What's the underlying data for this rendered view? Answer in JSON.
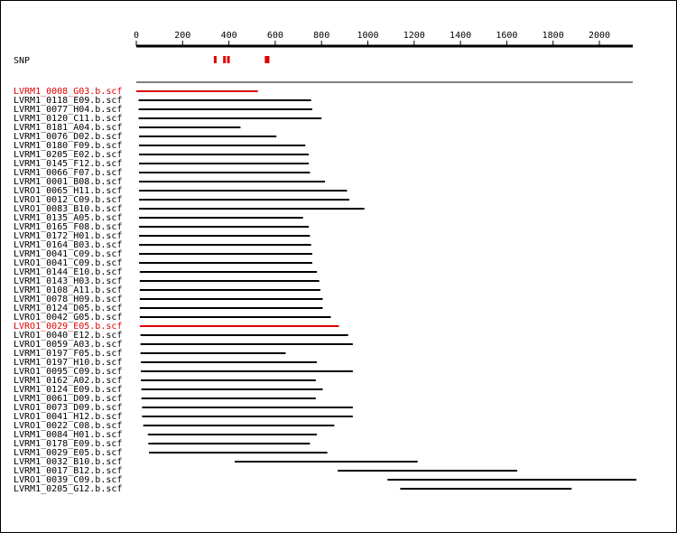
{
  "snp_label": "SNP",
  "scale": {
    "min": 0,
    "max": 2150,
    "ticks": [
      0,
      200,
      400,
      600,
      800,
      1000,
      1200,
      1400,
      1600,
      1800,
      2000
    ]
  },
  "colors": {
    "normal": "#000000",
    "highlight": "#e00000",
    "snp": "#e00000"
  },
  "snps": [
    {
      "start": 335,
      "end": 345
    },
    {
      "start": 375,
      "end": 385
    },
    {
      "start": 392,
      "end": 402
    },
    {
      "start": 555,
      "end": 575
    }
  ],
  "reads": [
    {
      "name": "LVRM1_0008_G03.b.scf",
      "start": 0,
      "end": 525,
      "highlight": true
    },
    {
      "name": "LVRM1_0118_E09.b.scf",
      "start": 10,
      "end": 755,
      "highlight": false
    },
    {
      "name": "LVRM1_0077_H04.b.scf",
      "start": 10,
      "end": 760,
      "highlight": false
    },
    {
      "name": "LVRM1_0120_C11.b.scf",
      "start": 10,
      "end": 800,
      "highlight": false
    },
    {
      "name": "LVRM1_0181_A04.b.scf",
      "start": 12,
      "end": 450,
      "highlight": false
    },
    {
      "name": "LVRM1_0076_D02.b.scf",
      "start": 12,
      "end": 605,
      "highlight": false
    },
    {
      "name": "LVRM1_0180_F09.b.scf",
      "start": 12,
      "end": 730,
      "highlight": false
    },
    {
      "name": "LVRM1_0205_E02.b.scf",
      "start": 12,
      "end": 745,
      "highlight": false
    },
    {
      "name": "LVRM1_0145_F12.b.scf",
      "start": 12,
      "end": 745,
      "highlight": false
    },
    {
      "name": "LVRM1_0066_F07.b.scf",
      "start": 12,
      "end": 750,
      "highlight": false
    },
    {
      "name": "LVRM1_0001_B08.b.scf",
      "start": 12,
      "end": 815,
      "highlight": false
    },
    {
      "name": "LVRO1_0065_H11.b.scf",
      "start": 12,
      "end": 910,
      "highlight": false
    },
    {
      "name": "LVRO1_0012_C09.b.scf",
      "start": 12,
      "end": 920,
      "highlight": false
    },
    {
      "name": "LVRO1_0083_B10.b.scf",
      "start": 12,
      "end": 985,
      "highlight": false
    },
    {
      "name": "LVRM1_0135_A05.b.scf",
      "start": 12,
      "end": 720,
      "highlight": false
    },
    {
      "name": "LVRM1_0165_F08.b.scf",
      "start": 12,
      "end": 745,
      "highlight": false
    },
    {
      "name": "LVRM1_0172_H01.b.scf",
      "start": 12,
      "end": 750,
      "highlight": false
    },
    {
      "name": "LVRM1_0164_B03.b.scf",
      "start": 12,
      "end": 755,
      "highlight": false
    },
    {
      "name": "LVRM1_0041_C09.b.scf",
      "start": 12,
      "end": 760,
      "highlight": false
    },
    {
      "name": "LVRO1_0041_C09.b.scf",
      "start": 12,
      "end": 760,
      "highlight": false
    },
    {
      "name": "LVRM1_0144_E10.b.scf",
      "start": 15,
      "end": 780,
      "highlight": false
    },
    {
      "name": "LVRM1_0143_H03.b.scf",
      "start": 15,
      "end": 790,
      "highlight": false
    },
    {
      "name": "LVRM1_0108_A11.b.scf",
      "start": 15,
      "end": 795,
      "highlight": false
    },
    {
      "name": "LVRM1_0078_H09.b.scf",
      "start": 15,
      "end": 805,
      "highlight": false
    },
    {
      "name": "LVRM1_0124_D05.b.scf",
      "start": 15,
      "end": 805,
      "highlight": false
    },
    {
      "name": "LVRO1_0042_G05.b.scf",
      "start": 15,
      "end": 840,
      "highlight": false
    },
    {
      "name": "LVRO1_0029_E05.b.scf",
      "start": 15,
      "end": 875,
      "highlight": true
    },
    {
      "name": "LVRO1_0040_E12.b.scf",
      "start": 18,
      "end": 915,
      "highlight": false
    },
    {
      "name": "LVRO1_0059_A03.b.scf",
      "start": 18,
      "end": 935,
      "highlight": false
    },
    {
      "name": "LVRM1_0197_F05.b.scf",
      "start": 18,
      "end": 645,
      "highlight": false
    },
    {
      "name": "LVRM1_0197_H10.b.scf",
      "start": 20,
      "end": 780,
      "highlight": false
    },
    {
      "name": "LVRO1_0095_C09.b.scf",
      "start": 20,
      "end": 935,
      "highlight": false
    },
    {
      "name": "LVRM1_0162_A02.b.scf",
      "start": 20,
      "end": 775,
      "highlight": false
    },
    {
      "name": "LVRM1_0124_E09.b.scf",
      "start": 22,
      "end": 805,
      "highlight": false
    },
    {
      "name": "LVRM1_0061_D09.b.scf",
      "start": 22,
      "end": 775,
      "highlight": false
    },
    {
      "name": "LVRO1_0073_D09.b.scf",
      "start": 25,
      "end": 935,
      "highlight": false
    },
    {
      "name": "LVRO1_0041_H12.b.scf",
      "start": 25,
      "end": 935,
      "highlight": false
    },
    {
      "name": "LVRO1_0022_C08.b.scf",
      "start": 30,
      "end": 855,
      "highlight": false
    },
    {
      "name": "LVRM1_0084_H01.b.scf",
      "start": 50,
      "end": 780,
      "highlight": false
    },
    {
      "name": "LVRM1_0178_E09.b.scf",
      "start": 52,
      "end": 750,
      "highlight": false
    },
    {
      "name": "LVRM1_0029_E05.b.scf",
      "start": 55,
      "end": 825,
      "highlight": false
    },
    {
      "name": "LVRM1_0032_B10.b.scf",
      "start": 425,
      "end": 1215,
      "highlight": false
    },
    {
      "name": "LVRM1_0017_B12.b.scf",
      "start": 870,
      "end": 1645,
      "highlight": false
    },
    {
      "name": "LVRO1_0039_C09.b.scf",
      "start": 1085,
      "end": 2165,
      "highlight": false
    },
    {
      "name": "LVRM1_0205_G12.b.scf",
      "start": 1140,
      "end": 1880,
      "highlight": false
    }
  ]
}
